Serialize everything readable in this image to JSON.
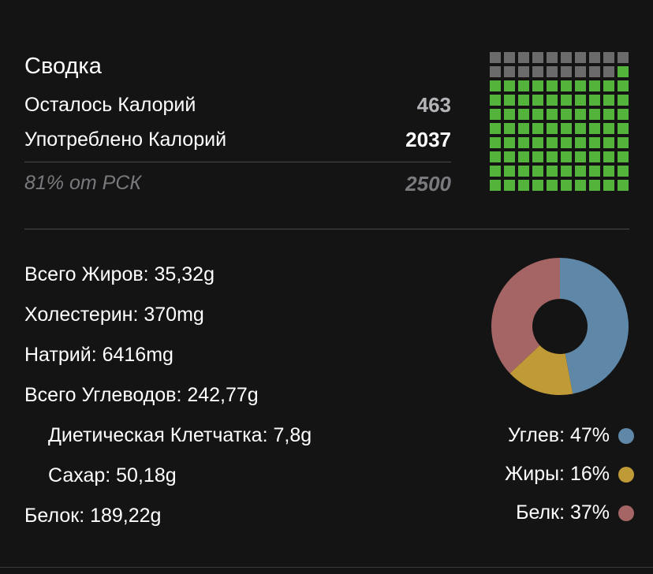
{
  "summary": {
    "title": "Сводка",
    "remaining_label": "Осталось Калорий",
    "remaining_value": "463",
    "consumed_label": "Употреблено Калорий",
    "consumed_value": "2037",
    "rsk_label": "81% от РСК",
    "rsk_value": "2500"
  },
  "progress_grid": {
    "total_cells": 100,
    "filled_cells": 81,
    "filled_fraction": 0.81,
    "filled_color": "#54b33a",
    "empty_color": "#6b6b6b"
  },
  "nutrients": [
    {
      "text": "Всего Жиров: 35,32g",
      "indent": false
    },
    {
      "text": "Холестерин: 370mg",
      "indent": false
    },
    {
      "text": "Натрий: 6416mg",
      "indent": false
    },
    {
      "text": "Всего Углеводов: 242,77g",
      "indent": false
    },
    {
      "text": "Диетическая Клетчатка: 7,8g",
      "indent": true
    },
    {
      "text": "Сахар: 50,18g",
      "indent": true
    },
    {
      "text": "Белок: 189,22g",
      "indent": false
    }
  ],
  "macros": [
    {
      "label": "Углев: 47%",
      "percent": 47,
      "color": "#5f87a8"
    },
    {
      "label": "Жиры: 16%",
      "percent": 16,
      "color": "#c09a36"
    },
    {
      "label": "Белк: 37%",
      "percent": 37,
      "color": "#a56565"
    }
  ]
}
